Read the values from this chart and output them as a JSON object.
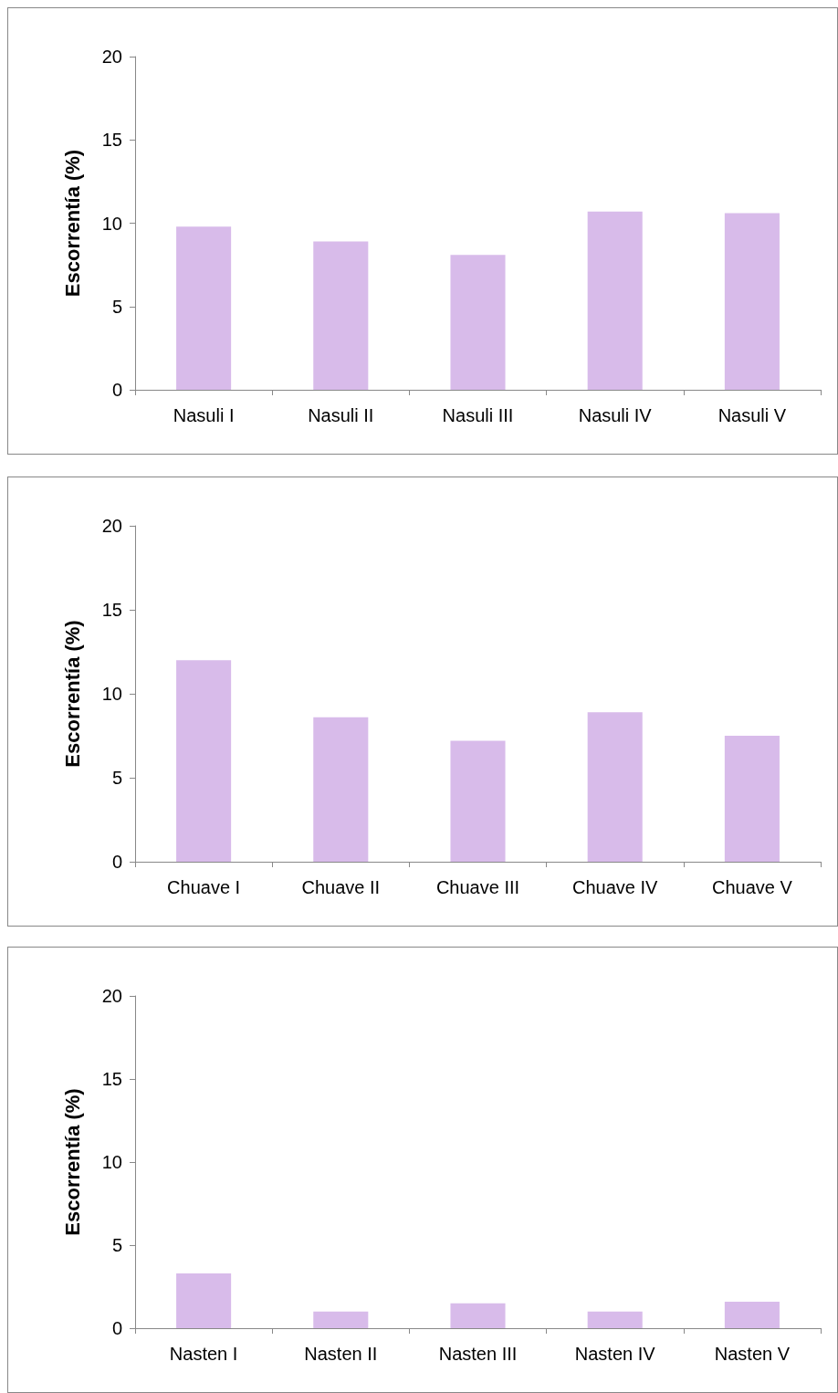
{
  "chart_data": [
    {
      "type": "bar",
      "ylabel": "Escorrentía (%)",
      "categories": [
        "Nasuli I",
        "Nasuli II",
        "Nasuli III",
        "Nasuli IV",
        "Nasuli V"
      ],
      "values": [
        9.8,
        8.9,
        8.1,
        10.7,
        10.6
      ],
      "color": "#d8bbea",
      "ylim": [
        0,
        20
      ],
      "yticks": [
        0,
        5,
        10,
        15,
        20
      ],
      "grid": false
    },
    {
      "type": "bar",
      "ylabel": "Escorrentía (%)",
      "categories": [
        "Chuave I",
        "Chuave II",
        "Chuave III",
        "Chuave IV",
        "Chuave V"
      ],
      "values": [
        12.0,
        8.6,
        7.2,
        8.9,
        7.5
      ],
      "color": "#d8bbea",
      "ylim": [
        0,
        20
      ],
      "yticks": [
        0,
        5,
        10,
        15,
        20
      ],
      "grid": false
    },
    {
      "type": "bar",
      "ylabel": "Escorrentía (%)",
      "categories": [
        "Nasten I",
        "Nasten II",
        "Nasten III",
        "Nasten IV",
        "Nasten V"
      ],
      "values": [
        3.3,
        1.0,
        1.5,
        1.0,
        1.6
      ],
      "color": "#d8bbea",
      "ylim": [
        0,
        20
      ],
      "yticks": [
        0,
        5,
        10,
        15,
        20
      ],
      "grid": false
    }
  ]
}
